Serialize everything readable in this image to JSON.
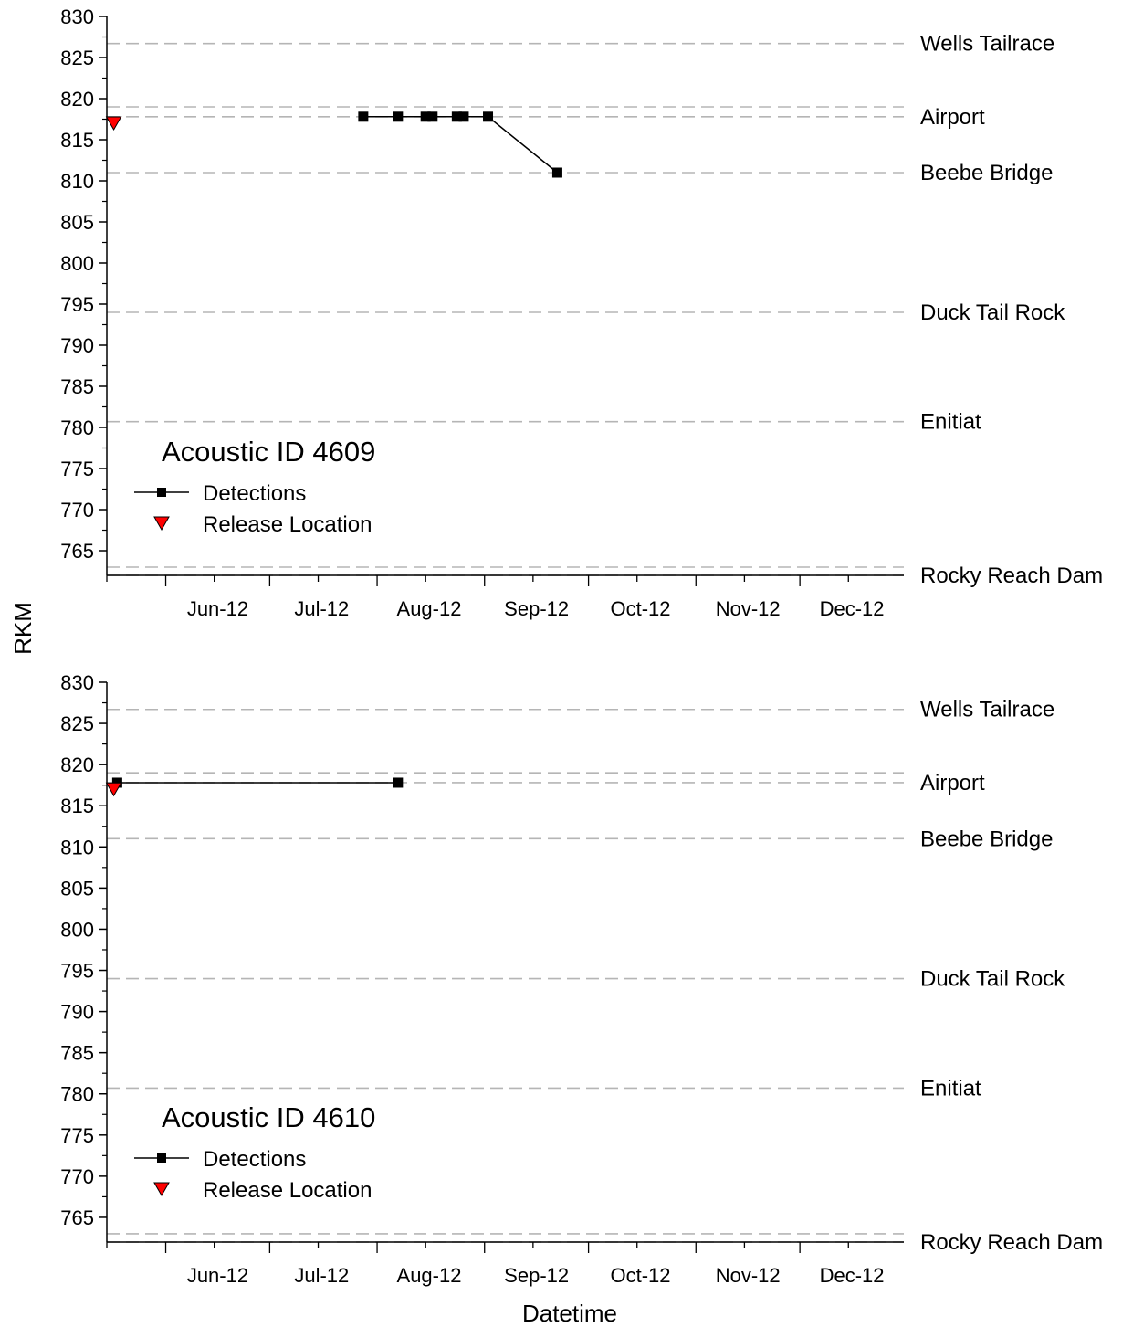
{
  "figure": {
    "ylabel": "RKM",
    "xlabel": "Datetime"
  },
  "chart_data": [
    {
      "type": "line",
      "title": "Acoustic ID 4609",
      "xlabel": "Datetime",
      "ylabel": "RKM",
      "ylim": [
        762,
        830
      ],
      "yticks": [
        765,
        770,
        775,
        780,
        785,
        790,
        795,
        800,
        805,
        810,
        815,
        820,
        825,
        830
      ],
      "xlim": [
        "2012-05-15",
        "2012-12-31"
      ],
      "xticks": [
        {
          "date": "2012-06-01",
          "label": "Jun-12"
        },
        {
          "date": "2012-07-01",
          "label": "Jul-12"
        },
        {
          "date": "2012-08-01",
          "label": "Aug-12"
        },
        {
          "date": "2012-09-01",
          "label": "Sep-12"
        },
        {
          "date": "2012-10-01",
          "label": "Oct-12"
        },
        {
          "date": "2012-11-01",
          "label": "Nov-12"
        },
        {
          "date": "2012-12-01",
          "label": "Dec-12"
        }
      ],
      "reference_lines": [
        {
          "y": 826.7,
          "label": "Wells Tailrace"
        },
        {
          "y": 819.0,
          "label": ""
        },
        {
          "y": 817.8,
          "label": "Airport"
        },
        {
          "y": 811.0,
          "label": "Beebe Bridge"
        },
        {
          "y": 794.0,
          "label": "Duck Tail Rock"
        },
        {
          "y": 780.7,
          "label": "Enitiat"
        },
        {
          "y": 763.0,
          "label": ""
        },
        {
          "y": 762.0,
          "label": "Rocky Reach Dam"
        }
      ],
      "legend": {
        "position": "lower-left",
        "entries": [
          "Detections",
          "Release Location"
        ]
      },
      "series": [
        {
          "name": "Detections",
          "marker": "square",
          "color": "#000000",
          "points": [
            {
              "x": "2012-07-28",
              "y": 817.8
            },
            {
              "x": "2012-08-07",
              "y": 817.8
            },
            {
              "x": "2012-08-15",
              "y": 817.8
            },
            {
              "x": "2012-08-17",
              "y": 817.8
            },
            {
              "x": "2012-08-24",
              "y": 817.8
            },
            {
              "x": "2012-08-26",
              "y": 817.8
            },
            {
              "x": "2012-09-02",
              "y": 817.8
            },
            {
              "x": "2012-09-22",
              "y": 811.0
            }
          ]
        },
        {
          "name": "Release Location",
          "marker": "triangle-down",
          "color": "#ff0000",
          "points": [
            {
              "x": "2012-05-17",
              "y": 817.0
            }
          ]
        }
      ]
    },
    {
      "type": "line",
      "title": "Acoustic ID 4610",
      "xlabel": "Datetime",
      "ylabel": "RKM",
      "ylim": [
        762,
        830
      ],
      "yticks": [
        765,
        770,
        775,
        780,
        785,
        790,
        795,
        800,
        805,
        810,
        815,
        820,
        825,
        830
      ],
      "xlim": [
        "2012-05-15",
        "2012-12-31"
      ],
      "xticks": [
        {
          "date": "2012-06-01",
          "label": "Jun-12"
        },
        {
          "date": "2012-07-01",
          "label": "Jul-12"
        },
        {
          "date": "2012-08-01",
          "label": "Aug-12"
        },
        {
          "date": "2012-09-01",
          "label": "Sep-12"
        },
        {
          "date": "2012-10-01",
          "label": "Oct-12"
        },
        {
          "date": "2012-11-01",
          "label": "Nov-12"
        },
        {
          "date": "2012-12-01",
          "label": "Dec-12"
        }
      ],
      "reference_lines": [
        {
          "y": 826.7,
          "label": "Wells Tailrace"
        },
        {
          "y": 819.0,
          "label": ""
        },
        {
          "y": 817.8,
          "label": "Airport"
        },
        {
          "y": 811.0,
          "label": "Beebe Bridge"
        },
        {
          "y": 794.0,
          "label": "Duck Tail Rock"
        },
        {
          "y": 780.7,
          "label": "Enitiat"
        },
        {
          "y": 763.0,
          "label": ""
        },
        {
          "y": 762.0,
          "label": "Rocky Reach Dam"
        }
      ],
      "legend": {
        "position": "lower-left",
        "entries": [
          "Detections",
          "Release Location"
        ]
      },
      "series": [
        {
          "name": "Detections",
          "marker": "square",
          "color": "#000000",
          "points": [
            {
              "x": "2012-05-18",
              "y": 817.8
            },
            {
              "x": "2012-08-07",
              "y": 817.8
            }
          ]
        },
        {
          "name": "Release Location",
          "marker": "triangle-down",
          "color": "#ff0000",
          "points": [
            {
              "x": "2012-05-17",
              "y": 817.0
            }
          ]
        }
      ]
    }
  ]
}
